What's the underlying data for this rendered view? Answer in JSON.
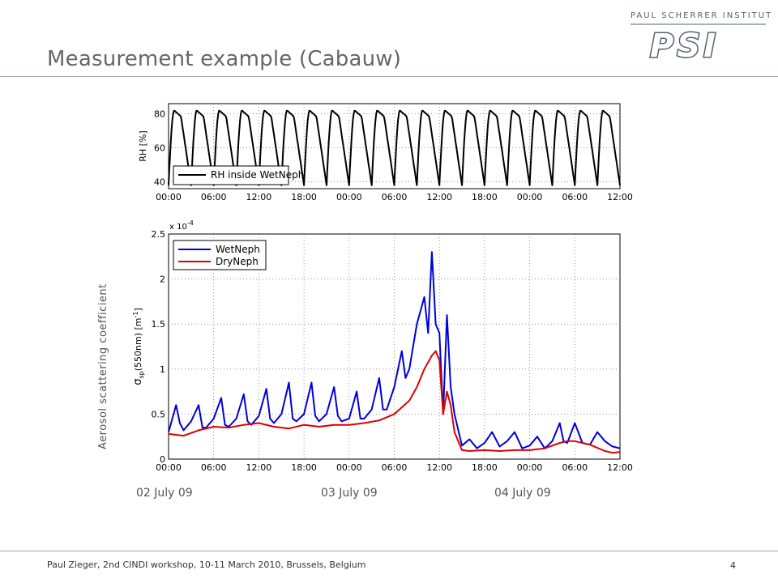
{
  "slide": {
    "title": "Measurement example (Cabauw)",
    "footer": "Paul Zieger, 2nd CINDI workshop, 10-11 March 2010, Brussels, Belgium",
    "page_number": "4",
    "logo_top_text": "PAUL SCHERRER INSTITUT",
    "logo_main_text": "PSI",
    "side_label": "Aerosol scattering coefficient",
    "date_labels": [
      "02 July 09",
      "03 July 09",
      "04 July 09"
    ]
  },
  "colors": {
    "wet": "#0000dd",
    "dry": "#dd0000",
    "rh": "#000000",
    "title": "#666666"
  },
  "chart_data": [
    {
      "type": "line",
      "ylabel": "RH [%]",
      "ylim": [
        36,
        86
      ],
      "yticks": [
        40,
        60,
        80
      ],
      "xticks": [
        "00:00",
        "06:00",
        "12:00",
        "18:00",
        "00:00",
        "06:00",
        "12:00",
        "18:00",
        "00:00",
        "06:00",
        "12:00"
      ],
      "xlim_hours": [
        0,
        60
      ],
      "grid": true,
      "legend_position": "bottom-left",
      "series": [
        {
          "name": "RH inside WetNeph",
          "color": "#000000",
          "pattern": {
            "period_hours": 3,
            "min": 38,
            "max": 82
          }
        }
      ]
    },
    {
      "type": "line",
      "ylabel": "σ_sp(550nm) [m^-1]",
      "scale_label": "x 10^-4",
      "ylim": [
        0,
        2.5
      ],
      "yticks": [
        0,
        0.5,
        1,
        1.5,
        2,
        2.5
      ],
      "xticks": [
        "00:00",
        "06:00",
        "12:00",
        "18:00",
        "00:00",
        "06:00",
        "12:00",
        "18:00",
        "00:00",
        "06:00",
        "12:00"
      ],
      "xlim_hours": [
        0,
        60
      ],
      "grid": true,
      "legend_position": "top-left",
      "series": [
        {
          "name": "WetNeph",
          "color": "#0000dd",
          "x": [
            0,
            1,
            1.5,
            2,
            3,
            4,
            4.5,
            5,
            6,
            7,
            7.5,
            8,
            9,
            10,
            10.5,
            11,
            12,
            13,
            13.5,
            14,
            15,
            16,
            16.5,
            17,
            18,
            19,
            19.5,
            20,
            21,
            22,
            22.5,
            23,
            24,
            25,
            25.5,
            26,
            27,
            28,
            28.5,
            29,
            30,
            31,
            31.5,
            32,
            33,
            34,
            34.5,
            35,
            35.5,
            36,
            36.5,
            37,
            37.5,
            38,
            39,
            40,
            41,
            42,
            43,
            44,
            45,
            46,
            47,
            48,
            49,
            50,
            51,
            52,
            52.5,
            53,
            54,
            55,
            56,
            57,
            58,
            59,
            60
          ],
          "y": [
            0.3,
            0.6,
            0.4,
            0.32,
            0.42,
            0.6,
            0.35,
            0.35,
            0.45,
            0.68,
            0.38,
            0.36,
            0.45,
            0.72,
            0.42,
            0.38,
            0.48,
            0.78,
            0.45,
            0.4,
            0.5,
            0.85,
            0.45,
            0.42,
            0.5,
            0.85,
            0.48,
            0.42,
            0.5,
            0.8,
            0.48,
            0.42,
            0.45,
            0.75,
            0.45,
            0.45,
            0.55,
            0.9,
            0.55,
            0.55,
            0.8,
            1.2,
            0.9,
            1.0,
            1.5,
            1.8,
            1.4,
            2.3,
            1.5,
            1.4,
            0.5,
            1.6,
            0.8,
            0.5,
            0.15,
            0.22,
            0.12,
            0.18,
            0.3,
            0.14,
            0.2,
            0.3,
            0.12,
            0.15,
            0.25,
            0.12,
            0.2,
            0.4,
            0.2,
            0.18,
            0.4,
            0.18,
            0.16,
            0.3,
            0.2,
            0.14,
            0.12
          ]
        },
        {
          "name": "DryNeph",
          "color": "#dd0000",
          "x": [
            0,
            2,
            4,
            6,
            8,
            10,
            12,
            14,
            16,
            18,
            20,
            22,
            24,
            26,
            28,
            30,
            32,
            33,
            34,
            35,
            35.5,
            36,
            36.5,
            37,
            37.5,
            38,
            39,
            40,
            42,
            44,
            46,
            48,
            50,
            52,
            53,
            54,
            56,
            58,
            59,
            60
          ],
          "y": [
            0.28,
            0.26,
            0.32,
            0.36,
            0.35,
            0.38,
            0.4,
            0.36,
            0.34,
            0.38,
            0.36,
            0.38,
            0.38,
            0.4,
            0.43,
            0.5,
            0.65,
            0.8,
            1.0,
            1.15,
            1.2,
            1.1,
            0.5,
            0.75,
            0.6,
            0.3,
            0.1,
            0.09,
            0.1,
            0.09,
            0.1,
            0.1,
            0.12,
            0.18,
            0.2,
            0.2,
            0.16,
            0.09,
            0.07,
            0.08
          ]
        }
      ]
    }
  ]
}
